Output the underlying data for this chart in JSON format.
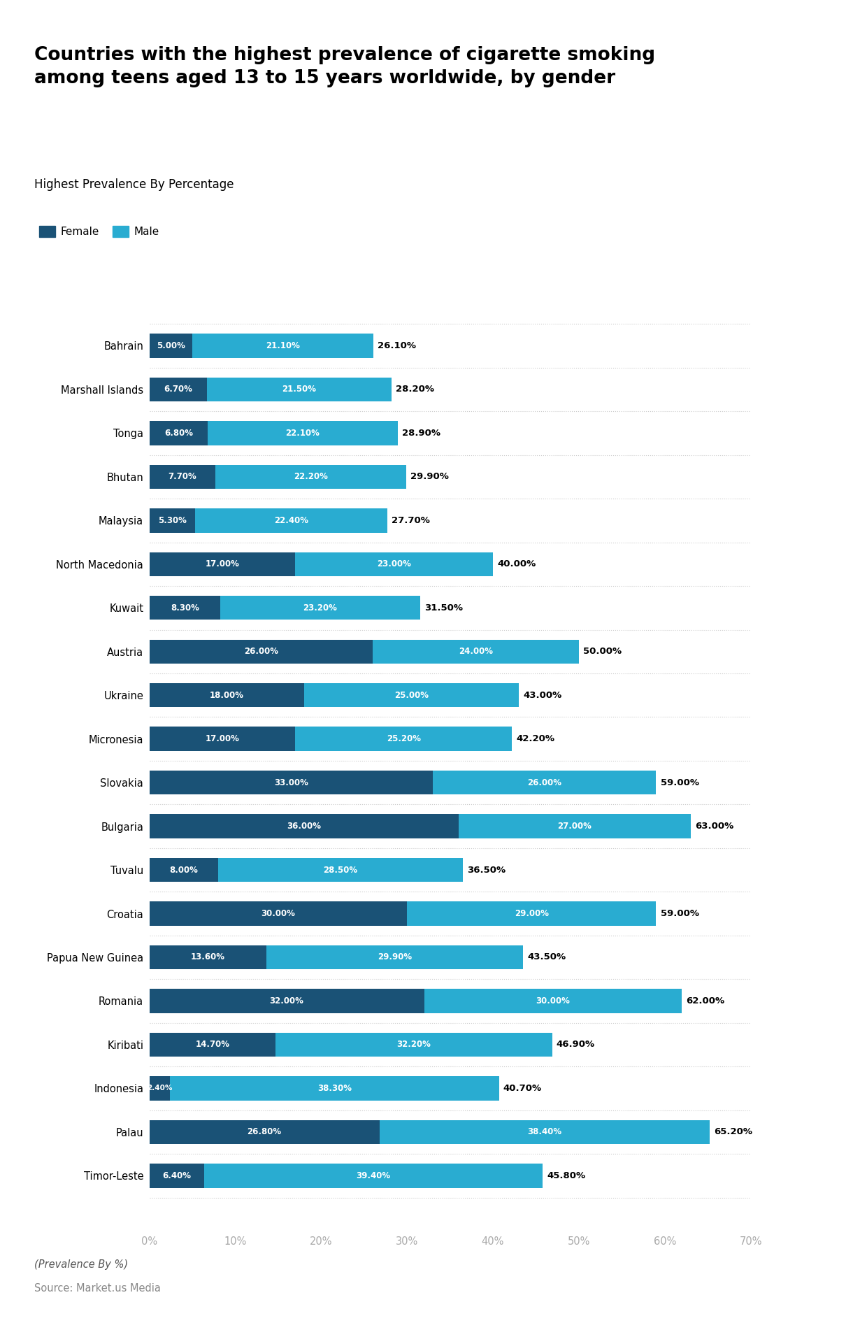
{
  "title": "Countries with the highest prevalence of cigarette smoking\namong teens aged 13 to 15 years worldwide, by gender",
  "subtitle": "Highest Prevalence By Percentage",
  "source": "Source: Market.us Media",
  "note": "(Prevalence By %)",
  "female_color": "#1a5276",
  "male_color": "#29acd1",
  "background_color": "#ffffff",
  "countries": [
    "Bahrain",
    "Marshall Islands",
    "Tonga",
    "Bhutan",
    "Malaysia",
    "North Macedonia",
    "Kuwait",
    "Austria",
    "Ukraine",
    "Micronesia",
    "Slovakia",
    "Bulgaria",
    "Tuvalu",
    "Croatia",
    "Papua New Guinea",
    "Romania",
    "Kiribati",
    "Indonesia",
    "Palau",
    "Timor-Leste"
  ],
  "female": [
    5.0,
    6.7,
    6.8,
    7.7,
    5.3,
    17.0,
    8.3,
    26.0,
    18.0,
    17.0,
    33.0,
    36.0,
    8.0,
    30.0,
    13.6,
    32.0,
    14.7,
    2.4,
    26.8,
    6.4
  ],
  "male": [
    21.1,
    21.5,
    22.1,
    22.2,
    22.4,
    23.0,
    23.2,
    24.0,
    25.0,
    25.2,
    26.0,
    27.0,
    28.5,
    29.0,
    29.9,
    30.0,
    32.2,
    38.3,
    38.4,
    39.4
  ],
  "total": [
    26.1,
    28.2,
    28.9,
    29.9,
    27.7,
    40.0,
    31.5,
    50.0,
    43.0,
    42.2,
    59.0,
    63.0,
    36.5,
    59.0,
    43.5,
    62.0,
    46.9,
    40.7,
    65.2,
    45.8
  ]
}
